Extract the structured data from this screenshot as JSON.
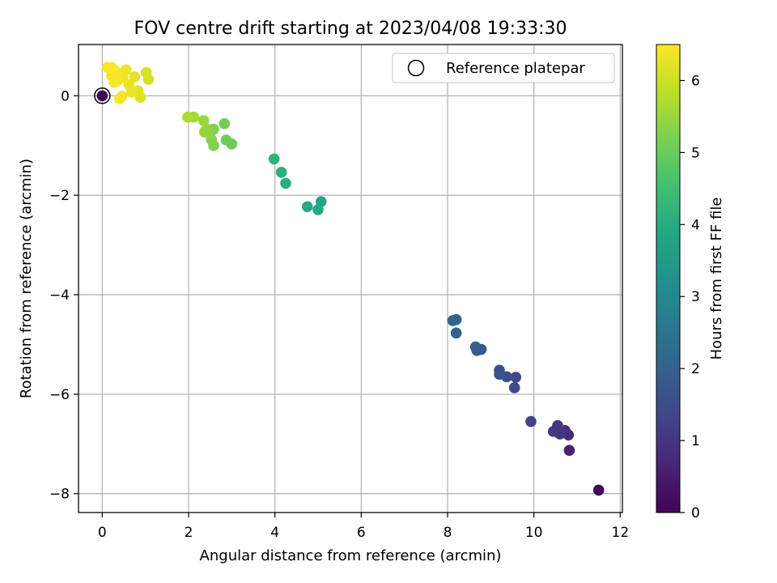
{
  "chart_data": {
    "type": "scatter",
    "title": "FOV centre drift starting at 2023/04/08 19:33:30",
    "xlabel": "Angular distance from reference (arcmin)",
    "ylabel": "Rotation from reference (arcmin)",
    "xlim": [
      -0.55,
      12.05
    ],
    "ylim": [
      -8.38,
      1.03
    ],
    "xticks": [
      0,
      2,
      4,
      6,
      8,
      10,
      12
    ],
    "yticks": [
      0,
      -2,
      -4,
      -6,
      -8
    ],
    "xtick_labels": [
      "0",
      "2",
      "4",
      "6",
      "8",
      "10",
      "12"
    ],
    "ytick_labels": [
      "0",
      "−2",
      "−4",
      "−6",
      "−8"
    ],
    "grid": true,
    "legend": {
      "entries": [
        {
          "label": "Reference platepar",
          "marker": "open-circle",
          "x": 0,
          "y": 0
        }
      ],
      "position": "upper-right"
    },
    "colorbar": {
      "label": "Hours from first FF file",
      "range": [
        0,
        6.5
      ],
      "ticks": [
        0,
        1,
        2,
        3,
        4,
        5,
        6
      ],
      "tick_labels": [
        "0",
        "1",
        "2",
        "3",
        "4",
        "5",
        "6"
      ],
      "colormap": "viridis"
    },
    "points": [
      {
        "x": 11.5,
        "y": -7.93,
        "h": 0.05
      },
      {
        "x": 10.82,
        "y": -7.13,
        "h": 0.6
      },
      {
        "x": 10.8,
        "y": -6.82,
        "h": 0.8
      },
      {
        "x": 10.72,
        "y": -6.73,
        "h": 0.9
      },
      {
        "x": 10.6,
        "y": -6.8,
        "h": 1.0
      },
      {
        "x": 10.55,
        "y": -6.63,
        "h": 1.05
      },
      {
        "x": 10.45,
        "y": -6.75,
        "h": 1.1
      },
      {
        "x": 9.93,
        "y": -6.55,
        "h": 1.3
      },
      {
        "x": 9.58,
        "y": -5.66,
        "h": 1.4
      },
      {
        "x": 9.55,
        "y": -5.87,
        "h": 1.45
      },
      {
        "x": 9.37,
        "y": -5.65,
        "h": 1.55
      },
      {
        "x": 9.2,
        "y": -5.52,
        "h": 1.6
      },
      {
        "x": 9.2,
        "y": -5.6,
        "h": 1.65
      },
      {
        "x": 8.78,
        "y": -5.1,
        "h": 1.85
      },
      {
        "x": 8.68,
        "y": -5.12,
        "h": 1.9
      },
      {
        "x": 8.65,
        "y": -5.05,
        "h": 1.95
      },
      {
        "x": 8.2,
        "y": -4.77,
        "h": 2.05
      },
      {
        "x": 8.2,
        "y": -4.5,
        "h": 2.1
      },
      {
        "x": 8.12,
        "y": -4.52,
        "h": 2.15
      },
      {
        "x": 5.07,
        "y": -2.13,
        "h": 3.85
      },
      {
        "x": 5.0,
        "y": -2.29,
        "h": 3.9
      },
      {
        "x": 4.75,
        "y": -2.23,
        "h": 3.95
      },
      {
        "x": 4.25,
        "y": -1.76,
        "h": 4.05
      },
      {
        "x": 4.15,
        "y": -1.54,
        "h": 4.1
      },
      {
        "x": 3.98,
        "y": -1.27,
        "h": 4.15
      },
      {
        "x": 3.0,
        "y": -0.97,
        "h": 5.0
      },
      {
        "x": 2.87,
        "y": -0.89,
        "h": 5.05
      },
      {
        "x": 2.83,
        "y": -0.56,
        "h": 5.1
      },
      {
        "x": 2.58,
        "y": -1.0,
        "h": 5.2
      },
      {
        "x": 2.58,
        "y": -0.67,
        "h": 5.25
      },
      {
        "x": 2.53,
        "y": -0.88,
        "h": 5.3
      },
      {
        "x": 2.5,
        "y": -0.75,
        "h": 5.35
      },
      {
        "x": 2.42,
        "y": -0.67,
        "h": 5.4
      },
      {
        "x": 2.37,
        "y": -0.73,
        "h": 5.45
      },
      {
        "x": 2.35,
        "y": -0.5,
        "h": 5.5
      },
      {
        "x": 2.12,
        "y": -0.43,
        "h": 5.6
      },
      {
        "x": 1.98,
        "y": -0.43,
        "h": 5.65
      },
      {
        "x": 1.07,
        "y": 0.33,
        "h": 6.05
      },
      {
        "x": 1.02,
        "y": 0.47,
        "h": 6.1
      },
      {
        "x": 0.88,
        "y": -0.03,
        "h": 6.15
      },
      {
        "x": 0.83,
        "y": 0.1,
        "h": 6.2
      },
      {
        "x": 0.75,
        "y": 0.38,
        "h": 6.25
      },
      {
        "x": 0.68,
        "y": 0.07,
        "h": 6.3
      },
      {
        "x": 0.62,
        "y": 0.22,
        "h": 6.3
      },
      {
        "x": 0.55,
        "y": 0.52,
        "h": 6.35
      },
      {
        "x": 0.48,
        "y": 0.37,
        "h": 6.35
      },
      {
        "x": 0.45,
        "y": -0.01,
        "h": 6.4
      },
      {
        "x": 0.4,
        "y": -0.06,
        "h": 6.4
      },
      {
        "x": 0.35,
        "y": 0.3,
        "h": 6.45
      },
      {
        "x": 0.3,
        "y": 0.5,
        "h": 6.45
      },
      {
        "x": 0.28,
        "y": 0.27,
        "h": 6.45
      },
      {
        "x": 0.22,
        "y": 0.4,
        "h": 6.45
      },
      {
        "x": 0.22,
        "y": 0.57,
        "h": 6.5
      },
      {
        "x": 0.12,
        "y": 0.57,
        "h": 6.5
      },
      {
        "x": 0.0,
        "y": 0.0,
        "h": 0.0
      }
    ]
  }
}
